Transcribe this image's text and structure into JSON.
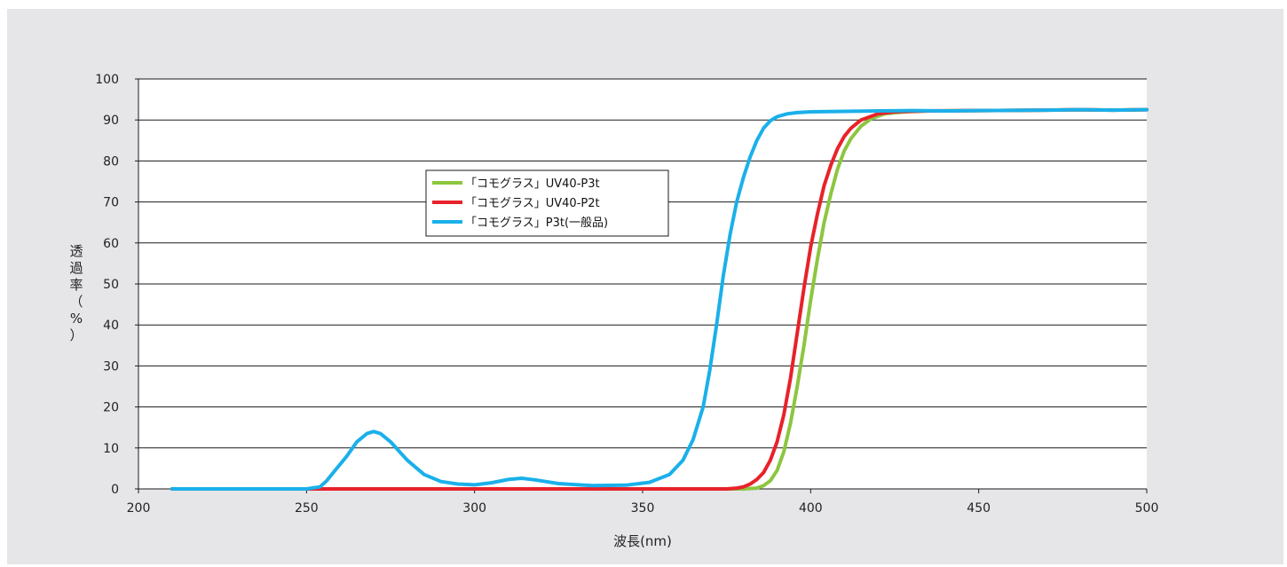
{
  "chart_data": {
    "type": "line",
    "xlabel": "波長(nm)",
    "ylabel_chars": [
      "透",
      "過",
      "率",
      "（",
      "%",
      "）"
    ],
    "xlim": [
      200,
      500
    ],
    "ylim": [
      0,
      100
    ],
    "x_ticks": [
      200,
      250,
      300,
      350,
      400,
      450,
      500
    ],
    "y_ticks": [
      0,
      10,
      20,
      30,
      40,
      50,
      60,
      70,
      80,
      90,
      100
    ],
    "grid": "horizontal",
    "legend_position": "upper-left-center",
    "series": [
      {
        "name": "「コモグラス」UV40-P3t",
        "color": "#8cc63f",
        "points": [
          [
            210,
            0
          ],
          [
            250,
            0
          ],
          [
            300,
            0
          ],
          [
            350,
            0
          ],
          [
            380,
            0
          ],
          [
            384,
            0.2
          ],
          [
            386,
            0.8
          ],
          [
            388,
            2
          ],
          [
            390,
            4.5
          ],
          [
            392,
            9
          ],
          [
            394,
            16
          ],
          [
            396,
            25
          ],
          [
            398,
            35
          ],
          [
            400,
            46
          ],
          [
            402,
            56
          ],
          [
            404,
            65
          ],
          [
            406,
            72
          ],
          [
            408,
            78
          ],
          [
            410,
            82.5
          ],
          [
            412,
            85.5
          ],
          [
            415,
            88.5
          ],
          [
            418,
            90.3
          ],
          [
            422,
            91.5
          ],
          [
            428,
            92
          ],
          [
            435,
            92.2
          ],
          [
            450,
            92.3
          ],
          [
            470,
            92.4
          ],
          [
            480,
            92.5
          ],
          [
            490,
            92.4
          ],
          [
            500,
            92.5
          ]
        ]
      },
      {
        "name": "「コモグラス」UV40-P2t",
        "color": "#e8222a",
        "points": [
          [
            210,
            0
          ],
          [
            250,
            0
          ],
          [
            300,
            0
          ],
          [
            350,
            0
          ],
          [
            375,
            0
          ],
          [
            378,
            0.2
          ],
          [
            380,
            0.5
          ],
          [
            382,
            1.2
          ],
          [
            384,
            2.3
          ],
          [
            386,
            4
          ],
          [
            388,
            7
          ],
          [
            390,
            11.5
          ],
          [
            392,
            18
          ],
          [
            394,
            27
          ],
          [
            396,
            38
          ],
          [
            398,
            49
          ],
          [
            400,
            59
          ],
          [
            402,
            67
          ],
          [
            404,
            74
          ],
          [
            406,
            79
          ],
          [
            408,
            83
          ],
          [
            410,
            86
          ],
          [
            412,
            88
          ],
          [
            415,
            90
          ],
          [
            420,
            91.5
          ],
          [
            425,
            92
          ],
          [
            435,
            92.2
          ],
          [
            450,
            92.3
          ],
          [
            470,
            92.4
          ],
          [
            480,
            92.5
          ],
          [
            490,
            92.4
          ],
          [
            500,
            92.5
          ]
        ]
      },
      {
        "name": "「コモグラス」P3t(一般品)",
        "color": "#1ab0ea",
        "points": [
          [
            210,
            0
          ],
          [
            240,
            0
          ],
          [
            250,
            0
          ],
          [
            254,
            0.5
          ],
          [
            256,
            2
          ],
          [
            258,
            4
          ],
          [
            262,
            8
          ],
          [
            265,
            11.5
          ],
          [
            268,
            13.5
          ],
          [
            270,
            14
          ],
          [
            272,
            13.5
          ],
          [
            275,
            11.5
          ],
          [
            280,
            7
          ],
          [
            285,
            3.5
          ],
          [
            290,
            1.8
          ],
          [
            295,
            1.2
          ],
          [
            300,
            1
          ],
          [
            305,
            1.5
          ],
          [
            310,
            2.3
          ],
          [
            314,
            2.6
          ],
          [
            318,
            2.2
          ],
          [
            325,
            1.3
          ],
          [
            335,
            0.8
          ],
          [
            345,
            0.9
          ],
          [
            352,
            1.6
          ],
          [
            358,
            3.5
          ],
          [
            362,
            7
          ],
          [
            365,
            12
          ],
          [
            368,
            20
          ],
          [
            370,
            29
          ],
          [
            372,
            40
          ],
          [
            374,
            52
          ],
          [
            376,
            62
          ],
          [
            378,
            70
          ],
          [
            380,
            76
          ],
          [
            382,
            81
          ],
          [
            384,
            85
          ],
          [
            386,
            88
          ],
          [
            388,
            89.8
          ],
          [
            390,
            90.8
          ],
          [
            393,
            91.5
          ],
          [
            396,
            91.8
          ],
          [
            400,
            92
          ],
          [
            410,
            92.1
          ],
          [
            420,
            92.2
          ],
          [
            430,
            92.3
          ],
          [
            440,
            92.2
          ],
          [
            450,
            92.3
          ],
          [
            470,
            92.4
          ],
          [
            480,
            92.5
          ],
          [
            490,
            92.4
          ],
          [
            500,
            92.5
          ]
        ]
      }
    ]
  }
}
